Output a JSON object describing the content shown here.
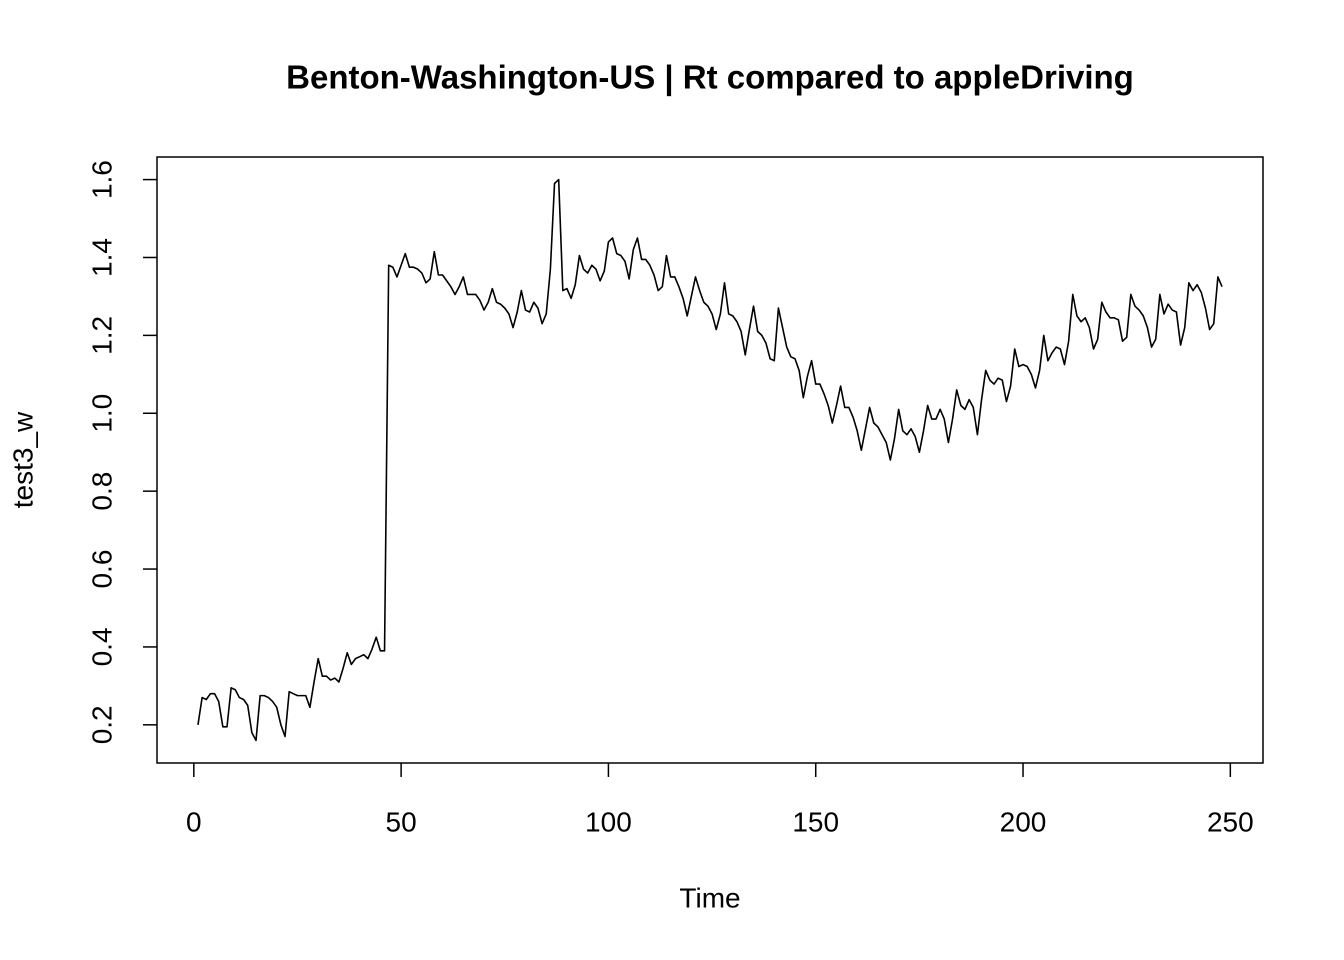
{
  "chart_data": {
    "type": "line",
    "title": "Benton-Washington-US | Rt compared to appleDriving",
    "xlabel": "Time",
    "ylabel": "test3_w",
    "x": [
      1,
      2,
      3,
      4,
      5,
      6,
      7,
      8,
      9,
      10,
      11,
      12,
      13,
      14,
      15,
      16,
      17,
      18,
      19,
      20,
      21,
      22,
      23,
      24,
      25,
      26,
      27,
      28,
      29,
      30,
      31,
      32,
      33,
      34,
      35,
      36,
      37,
      38,
      39,
      40,
      41,
      42,
      43,
      44,
      45,
      46,
      47,
      48,
      49,
      50,
      51,
      52,
      53,
      54,
      55,
      56,
      57,
      58,
      59,
      60,
      61,
      62,
      63,
      64,
      65,
      66,
      67,
      68,
      69,
      70,
      71,
      72,
      73,
      74,
      75,
      76,
      77,
      78,
      79,
      80,
      81,
      82,
      83,
      84,
      85,
      86,
      87,
      88,
      89,
      90,
      91,
      92,
      93,
      94,
      95,
      96,
      97,
      98,
      99,
      100,
      101,
      102,
      103,
      104,
      105,
      106,
      107,
      108,
      109,
      110,
      111,
      112,
      113,
      114,
      115,
      116,
      117,
      118,
      119,
      120,
      121,
      122,
      123,
      124,
      125,
      126,
      127,
      128,
      129,
      130,
      131,
      132,
      133,
      134,
      135,
      136,
      137,
      138,
      139,
      140,
      141,
      142,
      143,
      144,
      145,
      146,
      147,
      148,
      149,
      150,
      151,
      152,
      153,
      154,
      155,
      156,
      157,
      158,
      159,
      160,
      161,
      162,
      163,
      164,
      165,
      166,
      167,
      168,
      169,
      170,
      171,
      172,
      173,
      174,
      175,
      176,
      177,
      178,
      179,
      180,
      181,
      182,
      183,
      184,
      185,
      186,
      187,
      188,
      189,
      190,
      191,
      192,
      193,
      194,
      195,
      196,
      197,
      198,
      199,
      200,
      201,
      202,
      203,
      204,
      205,
      206,
      207,
      208,
      209,
      210,
      211,
      212,
      213,
      214,
      215,
      216,
      217,
      218,
      219,
      220,
      221,
      222,
      223,
      224,
      225,
      226,
      227,
      228,
      229,
      230,
      231,
      232,
      233,
      234,
      235,
      236,
      237,
      238,
      239,
      240,
      241,
      242,
      243,
      244,
      245,
      246,
      247,
      248
    ],
    "series": [
      {
        "color": "#000000",
        "values": [
          0.2,
          0.27,
          0.265,
          0.28,
          0.28,
          0.26,
          0.195,
          0.195,
          0.295,
          0.29,
          0.27,
          0.265,
          0.25,
          0.18,
          0.16,
          0.275,
          0.275,
          0.27,
          0.26,
          0.245,
          0.2,
          0.17,
          0.285,
          0.28,
          0.275,
          0.275,
          0.275,
          0.245,
          0.31,
          0.37,
          0.325,
          0.325,
          0.315,
          0.32,
          0.31,
          0.345,
          0.385,
          0.355,
          0.37,
          0.375,
          0.38,
          0.37,
          0.395,
          0.425,
          0.39,
          0.39,
          1.38,
          1.375,
          1.35,
          1.38,
          1.41,
          1.375,
          1.375,
          1.37,
          1.36,
          1.335,
          1.345,
          1.415,
          1.355,
          1.355,
          1.34,
          1.325,
          1.305,
          1.325,
          1.35,
          1.305,
          1.305,
          1.305,
          1.29,
          1.265,
          1.285,
          1.32,
          1.285,
          1.28,
          1.27,
          1.255,
          1.22,
          1.26,
          1.315,
          1.265,
          1.26,
          1.285,
          1.27,
          1.23,
          1.255,
          1.37,
          1.59,
          1.6,
          1.315,
          1.32,
          1.295,
          1.33,
          1.405,
          1.37,
          1.36,
          1.38,
          1.37,
          1.34,
          1.365,
          1.44,
          1.45,
          1.41,
          1.405,
          1.39,
          1.345,
          1.42,
          1.45,
          1.395,
          1.395,
          1.38,
          1.355,
          1.315,
          1.325,
          1.405,
          1.35,
          1.35,
          1.325,
          1.295,
          1.25,
          1.3,
          1.35,
          1.315,
          1.285,
          1.275,
          1.255,
          1.215,
          1.255,
          1.335,
          1.255,
          1.25,
          1.235,
          1.21,
          1.15,
          1.215,
          1.275,
          1.21,
          1.2,
          1.18,
          1.14,
          1.135,
          1.27,
          1.22,
          1.17,
          1.145,
          1.14,
          1.11,
          1.04,
          1.095,
          1.135,
          1.075,
          1.075,
          1.05,
          1.02,
          0.975,
          1.02,
          1.07,
          1.015,
          1.015,
          0.99,
          0.955,
          0.905,
          0.96,
          1.015,
          0.975,
          0.965,
          0.945,
          0.925,
          0.88,
          0.935,
          1.01,
          0.955,
          0.945,
          0.96,
          0.94,
          0.9,
          0.955,
          1.02,
          0.985,
          0.985,
          1.01,
          0.985,
          0.925,
          0.985,
          1.06,
          1.02,
          1.01,
          1.035,
          1.015,
          0.945,
          1.035,
          1.11,
          1.085,
          1.075,
          1.09,
          1.085,
          1.03,
          1.07,
          1.165,
          1.12,
          1.125,
          1.12,
          1.1,
          1.065,
          1.11,
          1.2,
          1.135,
          1.155,
          1.17,
          1.165,
          1.125,
          1.185,
          1.305,
          1.25,
          1.235,
          1.245,
          1.22,
          1.165,
          1.19,
          1.285,
          1.26,
          1.245,
          1.245,
          1.24,
          1.185,
          1.195,
          1.305,
          1.275,
          1.265,
          1.25,
          1.22,
          1.17,
          1.19,
          1.305,
          1.255,
          1.28,
          1.265,
          1.26,
          1.175,
          1.22,
          1.335,
          1.315,
          1.33,
          1.31,
          1.27,
          1.215,
          1.23,
          1.35,
          1.325
        ]
      }
    ],
    "xlim": [
      -8.88,
      257.88
    ],
    "ylim": [
      0.102,
      1.658
    ],
    "xticks": [
      0,
      50,
      100,
      150,
      200,
      250
    ],
    "yticks": [
      0.2,
      0.4,
      0.6,
      0.8,
      {
        "value": 1,
        "label": "1.0"
      },
      1.2,
      1.4,
      1.6
    ]
  }
}
